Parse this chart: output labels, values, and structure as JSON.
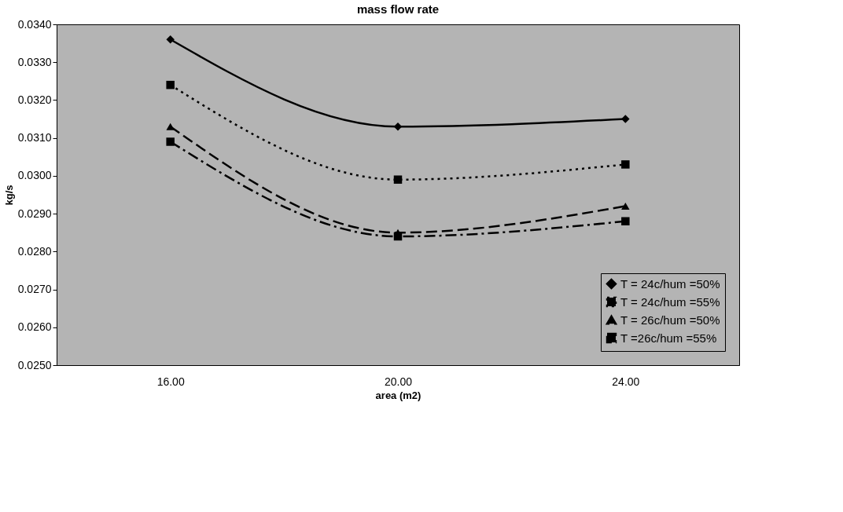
{
  "chart_data": {
    "type": "line",
    "title": "mass flow rate",
    "xlabel": "area (m2)",
    "ylabel": "kg/s",
    "categories": [
      "16.00",
      "20.00",
      "24.00"
    ],
    "series": [
      {
        "name": "T = 24c/hum =50%",
        "color": "#000000",
        "marker": "diamond",
        "line_style": "solid",
        "values": [
          0.0336,
          0.0313,
          0.0315
        ]
      },
      {
        "name": "T = 24c/hum =55%",
        "color": "#000000",
        "marker": "square",
        "line_style": "dotted",
        "values": [
          0.0324,
          0.0299,
          0.0303
        ]
      },
      {
        "name": "T = 26c/hum =50%",
        "color": "#000000",
        "marker": "triangle",
        "line_style": "dashed",
        "values": [
          0.0313,
          0.0285,
          0.0292
        ]
      },
      {
        "name": "T =26c/hum =55%",
        "color": "#000000",
        "marker": "square",
        "line_style": "dashdot",
        "values": [
          0.0309,
          0.0284,
          0.0288
        ]
      }
    ],
    "ylim": [
      0.025,
      0.034
    ],
    "yticks": [
      {
        "value": 0.025,
        "label": "0.0250"
      },
      {
        "value": 0.026,
        "label": "0.0260"
      },
      {
        "value": 0.027,
        "label": "0.0270"
      },
      {
        "value": 0.028,
        "label": "0.0280"
      },
      {
        "value": 0.029,
        "label": "0.0290"
      },
      {
        "value": 0.03,
        "label": "0.0300"
      },
      {
        "value": 0.031,
        "label": "0.0310"
      },
      {
        "value": 0.032,
        "label": "0.0320"
      },
      {
        "value": 0.033,
        "label": "0.0330"
      },
      {
        "value": 0.034,
        "label": "0.0340"
      }
    ],
    "grid": false,
    "legend": "bottom right"
  }
}
